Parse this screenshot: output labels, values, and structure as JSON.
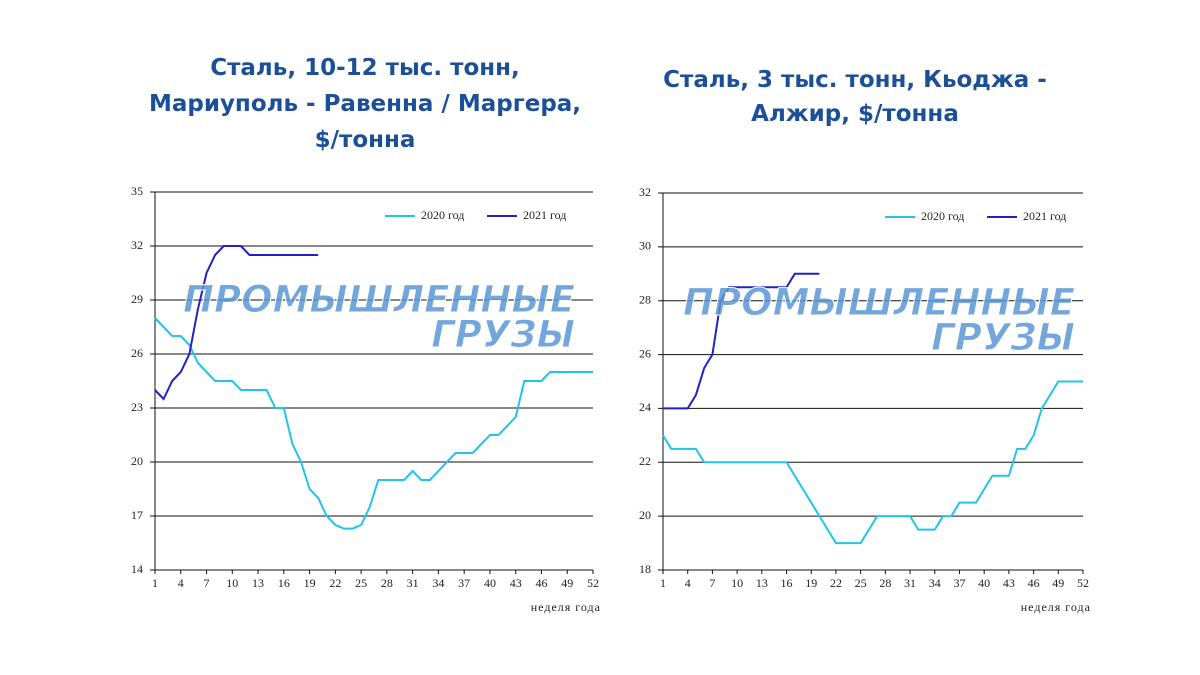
{
  "chart_data": [
    {
      "type": "line",
      "title": [
        "Сталь, 10-12 тыс. тонн,",
        "Мариуполь - Равенна / Маргера,",
        "$/тонна"
      ],
      "watermark": [
        "ПРОМЫШЛЕННЫЕ",
        "ГРУЗЫ"
      ],
      "x_label": "неделя года",
      "x": [
        1,
        2,
        3,
        4,
        5,
        6,
        7,
        8,
        9,
        10,
        11,
        12,
        13,
        14,
        15,
        16,
        17,
        18,
        19,
        20,
        21,
        22,
        23,
        24,
        25,
        26,
        27,
        28,
        29,
        30,
        31,
        32,
        33,
        34,
        35,
        36,
        37,
        38,
        39,
        40,
        41,
        42,
        43,
        44,
        45,
        46,
        47,
        48,
        49,
        50,
        51,
        52
      ],
      "xlim": [
        1,
        52
      ],
      "xticks": [
        1,
        4,
        7,
        10,
        13,
        16,
        19,
        22,
        25,
        28,
        31,
        34,
        37,
        40,
        43,
        46,
        49,
        52
      ],
      "ylim": [
        14,
        35
      ],
      "yticks": [
        14,
        17,
        20,
        23,
        26,
        29,
        32,
        35
      ],
      "grid": true,
      "series": [
        {
          "name": "2020 год",
          "color": "#22c4ea",
          "values": [
            28,
            27.5,
            27,
            27,
            26.5,
            25.5,
            25,
            24.5,
            24.5,
            24.5,
            24,
            24,
            24,
            24,
            23,
            23,
            21,
            20,
            18.5,
            18,
            17,
            16.5,
            16.3,
            16.3,
            16.5,
            17.5,
            19,
            19,
            19,
            19,
            19.5,
            19,
            19,
            19.5,
            20,
            20.5,
            20.5,
            20.5,
            21,
            21.5,
            21.5,
            22,
            22.5,
            24.5,
            24.5,
            24.5,
            25,
            25,
            25,
            25,
            25,
            25
          ]
        },
        {
          "name": "2021 год",
          "color": "#2222c4",
          "values": [
            24,
            23.5,
            24.5,
            25,
            26,
            28.5,
            30.5,
            31.5,
            32,
            32,
            32,
            31.5,
            31.5,
            31.5,
            31.5,
            31.5,
            31.5,
            31.5,
            31.5,
            31.5,
            null,
            null,
            null,
            null,
            null,
            null,
            null,
            null,
            null,
            null,
            null,
            null,
            null,
            null,
            null,
            null,
            null,
            null,
            null,
            null,
            null,
            null,
            null,
            null,
            null,
            null,
            null,
            null,
            null,
            null,
            null,
            null
          ]
        }
      ]
    },
    {
      "type": "line",
      "title": [
        "Сталь, 3 тыс. тонн, Кьоджа -",
        "Алжир, $/тонна"
      ],
      "watermark": [
        "ПРОМЫШЛЕННЫЕ",
        "ГРУЗЫ"
      ],
      "x_label": "неделя года",
      "x": [
        1,
        2,
        3,
        4,
        5,
        6,
        7,
        8,
        9,
        10,
        11,
        12,
        13,
        14,
        15,
        16,
        17,
        18,
        19,
        20,
        21,
        22,
        23,
        24,
        25,
        26,
        27,
        28,
        29,
        30,
        31,
        32,
        33,
        34,
        35,
        36,
        37,
        38,
        39,
        40,
        41,
        42,
        43,
        44,
        45,
        46,
        47,
        48,
        49,
        50,
        51,
        52
      ],
      "xlim": [
        1,
        52
      ],
      "xticks": [
        1,
        4,
        7,
        10,
        13,
        16,
        19,
        22,
        25,
        28,
        31,
        34,
        37,
        40,
        43,
        46,
        49,
        52
      ],
      "ylim": [
        18,
        32
      ],
      "yticks": [
        18,
        20,
        22,
        24,
        26,
        28,
        30,
        32
      ],
      "grid": true,
      "series": [
        {
          "name": "2020 год",
          "color": "#22c4ea",
          "values": [
            23,
            22.5,
            22.5,
            22.5,
            22.5,
            22,
            22,
            22,
            22,
            22,
            22,
            22,
            22,
            22,
            22,
            22,
            21.5,
            21,
            20.5,
            20,
            19.5,
            19,
            19,
            19,
            19,
            19.5,
            20,
            20,
            20,
            20,
            20,
            19.5,
            19.5,
            19.5,
            20,
            20,
            20.5,
            20.5,
            20.5,
            21,
            21.5,
            21.5,
            21.5,
            22.5,
            22.5,
            23,
            24,
            24.5,
            25,
            25,
            25,
            25
          ]
        },
        {
          "name": "2021 год",
          "color": "#2222c4",
          "values": [
            24,
            24,
            24,
            24,
            24.5,
            25.5,
            26,
            28,
            28.5,
            28.5,
            28.5,
            28.5,
            28.5,
            28.5,
            28.5,
            28.5,
            29,
            29,
            29,
            29,
            null,
            null,
            null,
            null,
            null,
            null,
            null,
            null,
            null,
            null,
            null,
            null,
            null,
            null,
            null,
            null,
            null,
            null,
            null,
            null,
            null,
            null,
            null,
            null,
            null,
            null,
            null,
            null,
            null,
            null,
            null,
            null
          ]
        }
      ]
    }
  ]
}
